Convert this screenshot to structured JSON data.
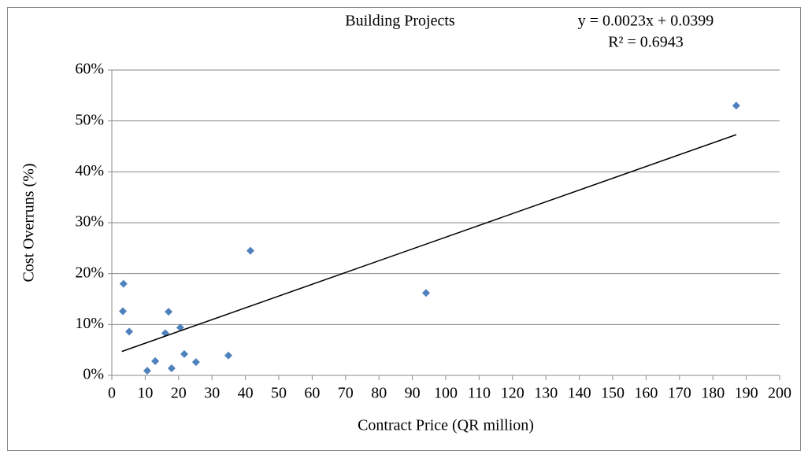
{
  "chart_data": {
    "type": "scatter",
    "title": "Building Projects",
    "annotations": [
      "y = 0.0023x + 0.0399",
      "R² = 0.6943"
    ],
    "x_label": "Contract Price (QR million)",
    "y_label": "Cost Overruns (%)",
    "series": [
      {
        "color": "#4f81bd",
        "x": [
          3.5,
          3.3,
          5.2,
          10.6,
          13,
          16,
          17,
          17.9,
          20.5,
          21.7,
          25.2,
          34.9,
          41.5,
          94.1,
          187
        ],
        "values": [
          18,
          12.6,
          8.6,
          0.9,
          2.8,
          8.3,
          12.5,
          1.4,
          9.4,
          4.2,
          2.6,
          3.9,
          24.5,
          16.2,
          53
        ]
      }
    ],
    "trendline": {
      "color": "#000000",
      "x": [
        3,
        187
      ],
      "values": [
        4.7,
        47.3
      ]
    },
    "xlim": [
      0,
      200
    ],
    "xticks": [
      0,
      10,
      20,
      30,
      40,
      50,
      60,
      70,
      80,
      90,
      100,
      110,
      120,
      130,
      140,
      150,
      160,
      170,
      180,
      190,
      200
    ],
    "ylim": [
      0,
      60
    ],
    "yticks": [
      {
        "value": 0,
        "label": "0%"
      },
      {
        "value": 10,
        "label": "10%"
      },
      {
        "value": 20,
        "label": "20%"
      },
      {
        "value": 30,
        "label": "30%"
      },
      {
        "value": 40,
        "label": "40%"
      },
      {
        "value": 50,
        "label": "50%"
      },
      {
        "value": 60,
        "label": "60%"
      }
    ],
    "grid": true
  }
}
